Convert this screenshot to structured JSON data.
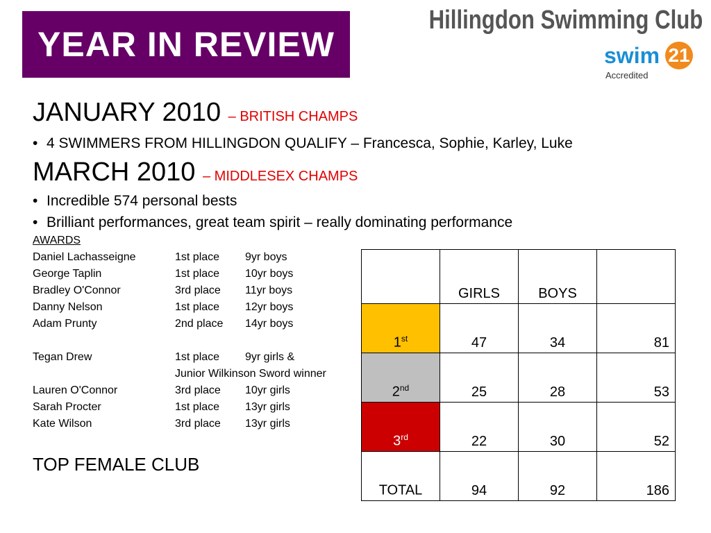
{
  "banner": {
    "title": "YEAR IN REVIEW",
    "color": "#660066"
  },
  "club": {
    "name": "Hillingdon Swimming Club"
  },
  "logo": {
    "swim": "swim",
    "number": "21",
    "accredited": "Accredited"
  },
  "sections": [
    {
      "heading": "JANUARY 2010",
      "subtitle": "– BRITISH CHAMPS",
      "bullets": [
        "4 SWIMMERS FROM HILLINGDON QUALIFY – Francesca, Sophie, Karley, Luke"
      ]
    },
    {
      "heading": "MARCH 2010",
      "subtitle": "– MIDDLESEX CHAMPS",
      "bullets": [
        "Incredible 574 personal bests",
        "Brilliant performances, great team spirit – really dominating performance"
      ]
    }
  ],
  "awards": {
    "title": "AWARDS",
    "rows": [
      {
        "name": "Daniel Lachasseigne",
        "place": "1st place",
        "category": "9yr boys"
      },
      {
        "name": "George Taplin",
        "place": "1st place",
        "category": "10yr boys"
      },
      {
        "name": "Bradley O'Connor",
        "place": "3rd place",
        "category": "11yr boys"
      },
      {
        "name": "Danny Nelson",
        "place": "1st place",
        "category": "12yr boys"
      },
      {
        "name": "Adam Prunty",
        "place": "2nd place",
        "category": "14yr boys"
      },
      {
        "name": "Tegan Drew",
        "place": "1st place",
        "category": "9yr girls &"
      },
      {
        "name": "",
        "place": "Junior Wilkinson Sword winner",
        "category": ""
      },
      {
        "name": "Lauren O'Connor",
        "place": "3rd place",
        "category": "10yr girls"
      },
      {
        "name": "Sarah Procter",
        "place": "1st place",
        "category": "13yr girls"
      },
      {
        "name": "Kate Wilson",
        "place": "3rd place",
        "category": "13yr girls"
      }
    ]
  },
  "top_female": "TOP FEMALE CLUB",
  "results": {
    "headers": [
      "",
      "GIRLS",
      "BOYS",
      ""
    ],
    "rows": [
      {
        "place": "1",
        "suffix": "st",
        "color": "#ffc000",
        "girls": "47",
        "boys": "34",
        "total": "81"
      },
      {
        "place": "2",
        "suffix": "nd",
        "color": "#bfbfbf",
        "girls": "25",
        "boys": "28",
        "total": "53"
      },
      {
        "place": "3",
        "suffix": "rd",
        "color": "#cc0000",
        "girls": "22",
        "boys": "30",
        "total": "52"
      },
      {
        "place": "TOTAL",
        "suffix": "",
        "color": "#ffffff",
        "girls": "94",
        "boys": "92",
        "total": "186"
      }
    ]
  }
}
